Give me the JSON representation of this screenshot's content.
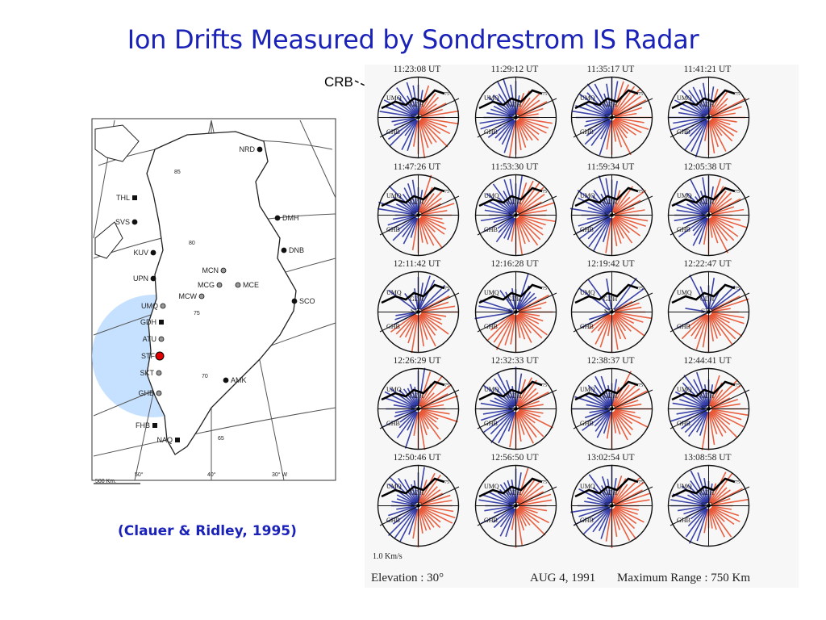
{
  "title": "Ion Drifts Measured by Sondrestrom IS Radar",
  "citation": "(Clauer & Ridley, 1995)",
  "crb_label": "CRB",
  "map": {
    "stations": [
      {
        "code": "NRD"
      },
      {
        "code": "THL"
      },
      {
        "code": "SVS"
      },
      {
        "code": "DMH"
      },
      {
        "code": "KUV"
      },
      {
        "code": "DNB"
      },
      {
        "code": "MCN"
      },
      {
        "code": "UPN"
      },
      {
        "code": "MCG"
      },
      {
        "code": "MCE"
      },
      {
        "code": "MCW"
      },
      {
        "code": "SCO"
      },
      {
        "code": "UMQ"
      },
      {
        "code": "GDH"
      },
      {
        "code": "ATU"
      },
      {
        "code": "STF"
      },
      {
        "code": "SKT"
      },
      {
        "code": "AMK"
      },
      {
        "code": "GHB"
      },
      {
        "code": "FHB"
      },
      {
        "code": "NAQ"
      }
    ],
    "latitude_labels": [
      "85",
      "80",
      "75",
      "70",
      "65"
    ],
    "longitude_labels": [
      "50°",
      "40°",
      "30° W"
    ],
    "scale_label": "500 Km."
  },
  "panels": [
    {
      "time": "11:23:08 UT",
      "dist": "split"
    },
    {
      "time": "11:29:12 UT",
      "dist": "split"
    },
    {
      "time": "11:35:17 UT",
      "dist": "split"
    },
    {
      "time": "11:41:21 UT",
      "dist": "split"
    },
    {
      "time": "11:47:26 UT",
      "dist": "split"
    },
    {
      "time": "11:53:30 UT",
      "dist": "split"
    },
    {
      "time": "11:59:34 UT",
      "dist": "split"
    },
    {
      "time": "12:05:38 UT",
      "dist": "split"
    },
    {
      "time": "12:11:42 UT",
      "dist": "red-top"
    },
    {
      "time": "12:16:28 UT",
      "dist": "red-top"
    },
    {
      "time": "12:19:42 UT",
      "dist": "red-top"
    },
    {
      "time": "12:22:47 UT",
      "dist": "red-top"
    },
    {
      "time": "12:26:29 UT",
      "dist": "split"
    },
    {
      "time": "12:32:33 UT",
      "dist": "split"
    },
    {
      "time": "12:38:37 UT",
      "dist": "split"
    },
    {
      "time": "12:44:41 UT",
      "dist": "split"
    },
    {
      "time": "12:50:46 UT",
      "dist": "split"
    },
    {
      "time": "12:56:50 UT",
      "dist": "split"
    },
    {
      "time": "13:02:54 UT",
      "dist": "split"
    },
    {
      "time": "13:08:58 UT",
      "dist": "split"
    }
  ],
  "plot_labels": {
    "umq": "UMQ",
    "gdh": "GDH",
    "stf": "STF",
    "ghb": "GHB",
    "lat75": "75"
  },
  "scale_note": "1.0 Km/s",
  "footer": {
    "elevation": "Elevation : 30°",
    "date": "AUG 4, 1991",
    "range": "Maximum Range : 750 Km"
  },
  "colors": {
    "title": "#1a22b8",
    "eastward": "#e8502e",
    "westward": "#2630a0",
    "highlight": "#bcdcff",
    "marker": "#e00000"
  }
}
